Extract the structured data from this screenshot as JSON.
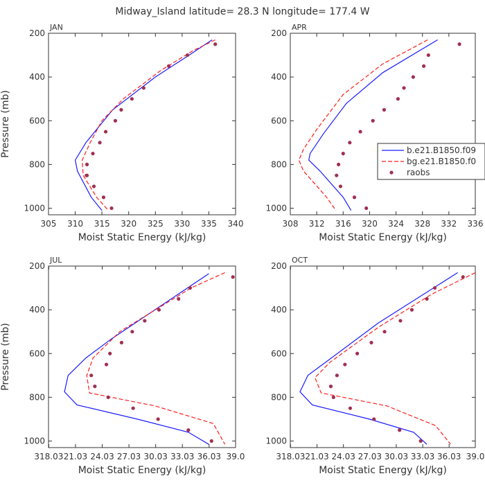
{
  "figure": {
    "title": "Midway_Island  latitude= 28.3 N longitude= 177.4 W",
    "ylabel": "Pressure (mb)",
    "xlabel": "Moist Static Energy (kJ/kg)"
  },
  "chart_data": [
    {
      "type": "line",
      "panel": "JAN",
      "xlabel": "Moist Static Energy (kJ/kg)",
      "ylabel": "Pressure (mb)",
      "xlim": [
        305,
        340
      ],
      "ylim": [
        200,
        1030
      ],
      "y_inverted": true,
      "xticks": [
        305,
        310,
        315,
        320,
        325,
        330,
        335,
        340
      ],
      "xtick_labels": [
        "305",
        "310",
        "315",
        "320",
        "325",
        "330",
        "335",
        "340"
      ],
      "yticks": [
        200,
        400,
        600,
        800,
        1000
      ],
      "ytick_labels": [
        "200",
        "400",
        "600",
        "800",
        "1000"
      ],
      "series": [
        {
          "style": "solid",
          "color": "#1a1aff",
          "x": [
            335.6,
            331.3,
            325.0,
            317.0,
            312.0,
            310.0,
            310.4,
            313.0,
            315.0
          ],
          "y": [
            230,
            300,
            400,
            550,
            700,
            780,
            830,
            950,
            1010
          ]
        },
        {
          "style": "dashed",
          "color": "#ff1a1a",
          "x": [
            336.2,
            332.0,
            326.0,
            319.0,
            315.0,
            312.8,
            311.3,
            311.5,
            314.0,
            316.2
          ],
          "y": [
            230,
            280,
            370,
            500,
            600,
            700,
            780,
            850,
            950,
            1010
          ]
        },
        {
          "style": "dots",
          "color": "#a03050",
          "x": [
            336.2,
            331.0,
            327.5,
            322.8,
            320.6,
            318.6,
            317.5,
            315.7,
            314.6,
            313.3,
            312.2,
            312.1,
            312.2,
            313.5,
            315.3,
            316.8
          ],
          "y": [
            250,
            300,
            350,
            450,
            500,
            550,
            600,
            650,
            700,
            750,
            800,
            850,
            850,
            900,
            950,
            1000
          ]
        }
      ]
    },
    {
      "type": "line",
      "panel": "APR",
      "xlabel": "Moist Static Energy (kJ/kg)",
      "ylabel": "",
      "xlim": [
        308,
        336
      ],
      "ylim": [
        200,
        1030
      ],
      "y_inverted": true,
      "xticks": [
        308,
        312,
        316,
        320,
        324,
        328,
        332,
        336
      ],
      "xtick_labels": [
        "308",
        "312",
        "316",
        "320",
        "324",
        "328",
        "332",
        "336"
      ],
      "yticks": [
        200,
        400,
        600,
        800,
        1000
      ],
      "ytick_labels": [
        "200",
        "400",
        "600",
        "800",
        "1000"
      ],
      "legend": {
        "placement": "right",
        "entries": [
          "b.e21.B1850.f09",
          "bg.e21.B1850.f0",
          "raobs"
        ]
      },
      "series": [
        {
          "name": "b.e21.B1850.f09",
          "style": "solid",
          "color": "#1a1aff",
          "x": [
            330.3,
            322.0,
            316.5,
            313.0,
            311.0,
            310.8,
            312.5,
            316.0,
            317.2
          ],
          "y": [
            230,
            380,
            520,
            660,
            750,
            780,
            830,
            950,
            1010
          ]
        },
        {
          "name": "bg.e21.B1850.f0",
          "style": "dashed",
          "color": "#ff1a1a",
          "x": [
            328.8,
            322.0,
            316.0,
            312.0,
            310.0,
            309.3,
            310.0,
            313.5,
            314.9
          ],
          "y": [
            230,
            340,
            480,
            640,
            730,
            780,
            830,
            950,
            1010
          ]
        },
        {
          "name": "raobs",
          "style": "dots",
          "color": "#a03050",
          "x": [
            333.6,
            328.9,
            328.2,
            326.6,
            325.2,
            324.3,
            322.2,
            320.5,
            318.6,
            317.0,
            316.0,
            315.3,
            315.0,
            315.6,
            317.7,
            319.5
          ],
          "y": [
            250,
            300,
            350,
            400,
            450,
            500,
            550,
            600,
            650,
            700,
            750,
            800,
            850,
            900,
            950,
            1000
          ]
        }
      ]
    },
    {
      "type": "line",
      "panel": "JUL",
      "xlabel": "Moist Static Energy (kJ/kg)",
      "ylabel": "Pressure (mb)",
      "xlim": [
        318.0,
        339.0
      ],
      "ylim": [
        200,
        1030
      ],
      "y_inverted": true,
      "xticks": [
        318.03,
        321.03,
        324.03,
        327.03,
        330.03,
        333.03,
        336.03,
        339.0
      ],
      "xtick_labels": [
        "318.03",
        "21.03",
        "24.03",
        "27.03",
        "30.03",
        "33.03",
        "36.03",
        "39.0"
      ],
      "yticks": [
        200,
        400,
        600,
        800,
        1000
      ],
      "ytick_labels": [
        "200",
        "400",
        "600",
        "800",
        "1000"
      ],
      "series": [
        {
          "style": "solid",
          "color": "#1a1aff",
          "x": [
            336.0,
            325.0,
            322.2,
            320.2,
            319.8,
            321.2,
            328.0,
            333.7,
            336.0
          ],
          "y": [
            235,
            535,
            620,
            700,
            775,
            835,
            900,
            960,
            1015
          ]
        },
        {
          "style": "dashed",
          "color": "#ff1a1a",
          "x": [
            337.8,
            334.0,
            326.0,
            323.0,
            322.3,
            322.6,
            330.0,
            336.5,
            337.8
          ],
          "y": [
            230,
            300,
            500,
            620,
            700,
            780,
            840,
            920,
            1015
          ]
        },
        {
          "style": "dots",
          "color": "#a03050",
          "x": [
            338.7,
            333.9,
            332.6,
            330.4,
            328.8,
            327.4,
            326.2,
            324.9,
            324.5,
            322.8,
            323.2,
            324.7,
            327.5,
            330.3,
            333.7,
            336.3
          ],
          "y": [
            250,
            300,
            350,
            400,
            450,
            500,
            550,
            600,
            650,
            700,
            750,
            800,
            850,
            900,
            950,
            1000
          ]
        }
      ]
    },
    {
      "type": "line",
      "panel": "OCT",
      "xlabel": "Moist Static Energy (kJ/kg)",
      "ylabel": "",
      "xlim": [
        318.0,
        339.0
      ],
      "ylim": [
        200,
        1030
      ],
      "y_inverted": true,
      "xticks": [
        318.03,
        321.03,
        324.03,
        327.03,
        330.03,
        333.03,
        336.03,
        339.0
      ],
      "xtick_labels": [
        "318.03",
        "21.03",
        "24.03",
        "27.03",
        "30.03",
        "33.03",
        "36.03",
        "39.0"
      ],
      "yticks": [
        200,
        400,
        600,
        800,
        1000
      ],
      "ytick_labels": [
        "200",
        "400",
        "600",
        "800",
        "1000"
      ],
      "series": [
        {
          "style": "solid",
          "color": "#1a1aff",
          "x": [
            337.0,
            328.0,
            322.0,
            320.0,
            319.1,
            320.5,
            327.0,
            332.0,
            333.5
          ],
          "y": [
            230,
            460,
            640,
            700,
            775,
            835,
            900,
            960,
            1015
          ]
        },
        {
          "style": "dashed",
          "color": "#ff1a1a",
          "x": [
            339.0,
            334.0,
            328.0,
            322.5,
            320.8,
            321.5,
            329.0,
            334.5,
            336.2
          ],
          "y": [
            230,
            330,
            480,
            640,
            710,
            780,
            840,
            930,
            1015
          ]
        },
        {
          "style": "dots",
          "color": "#a03050",
          "x": [
            337.6,
            334.4,
            333.5,
            331.8,
            330.5,
            328.7,
            327.2,
            325.6,
            324.2,
            323.3,
            322.6,
            322.9,
            324.8,
            327.5,
            330.4,
            332.8
          ],
          "y": [
            250,
            300,
            350,
            400,
            450,
            500,
            550,
            600,
            650,
            700,
            750,
            800,
            850,
            900,
            950,
            1000
          ]
        }
      ]
    }
  ]
}
